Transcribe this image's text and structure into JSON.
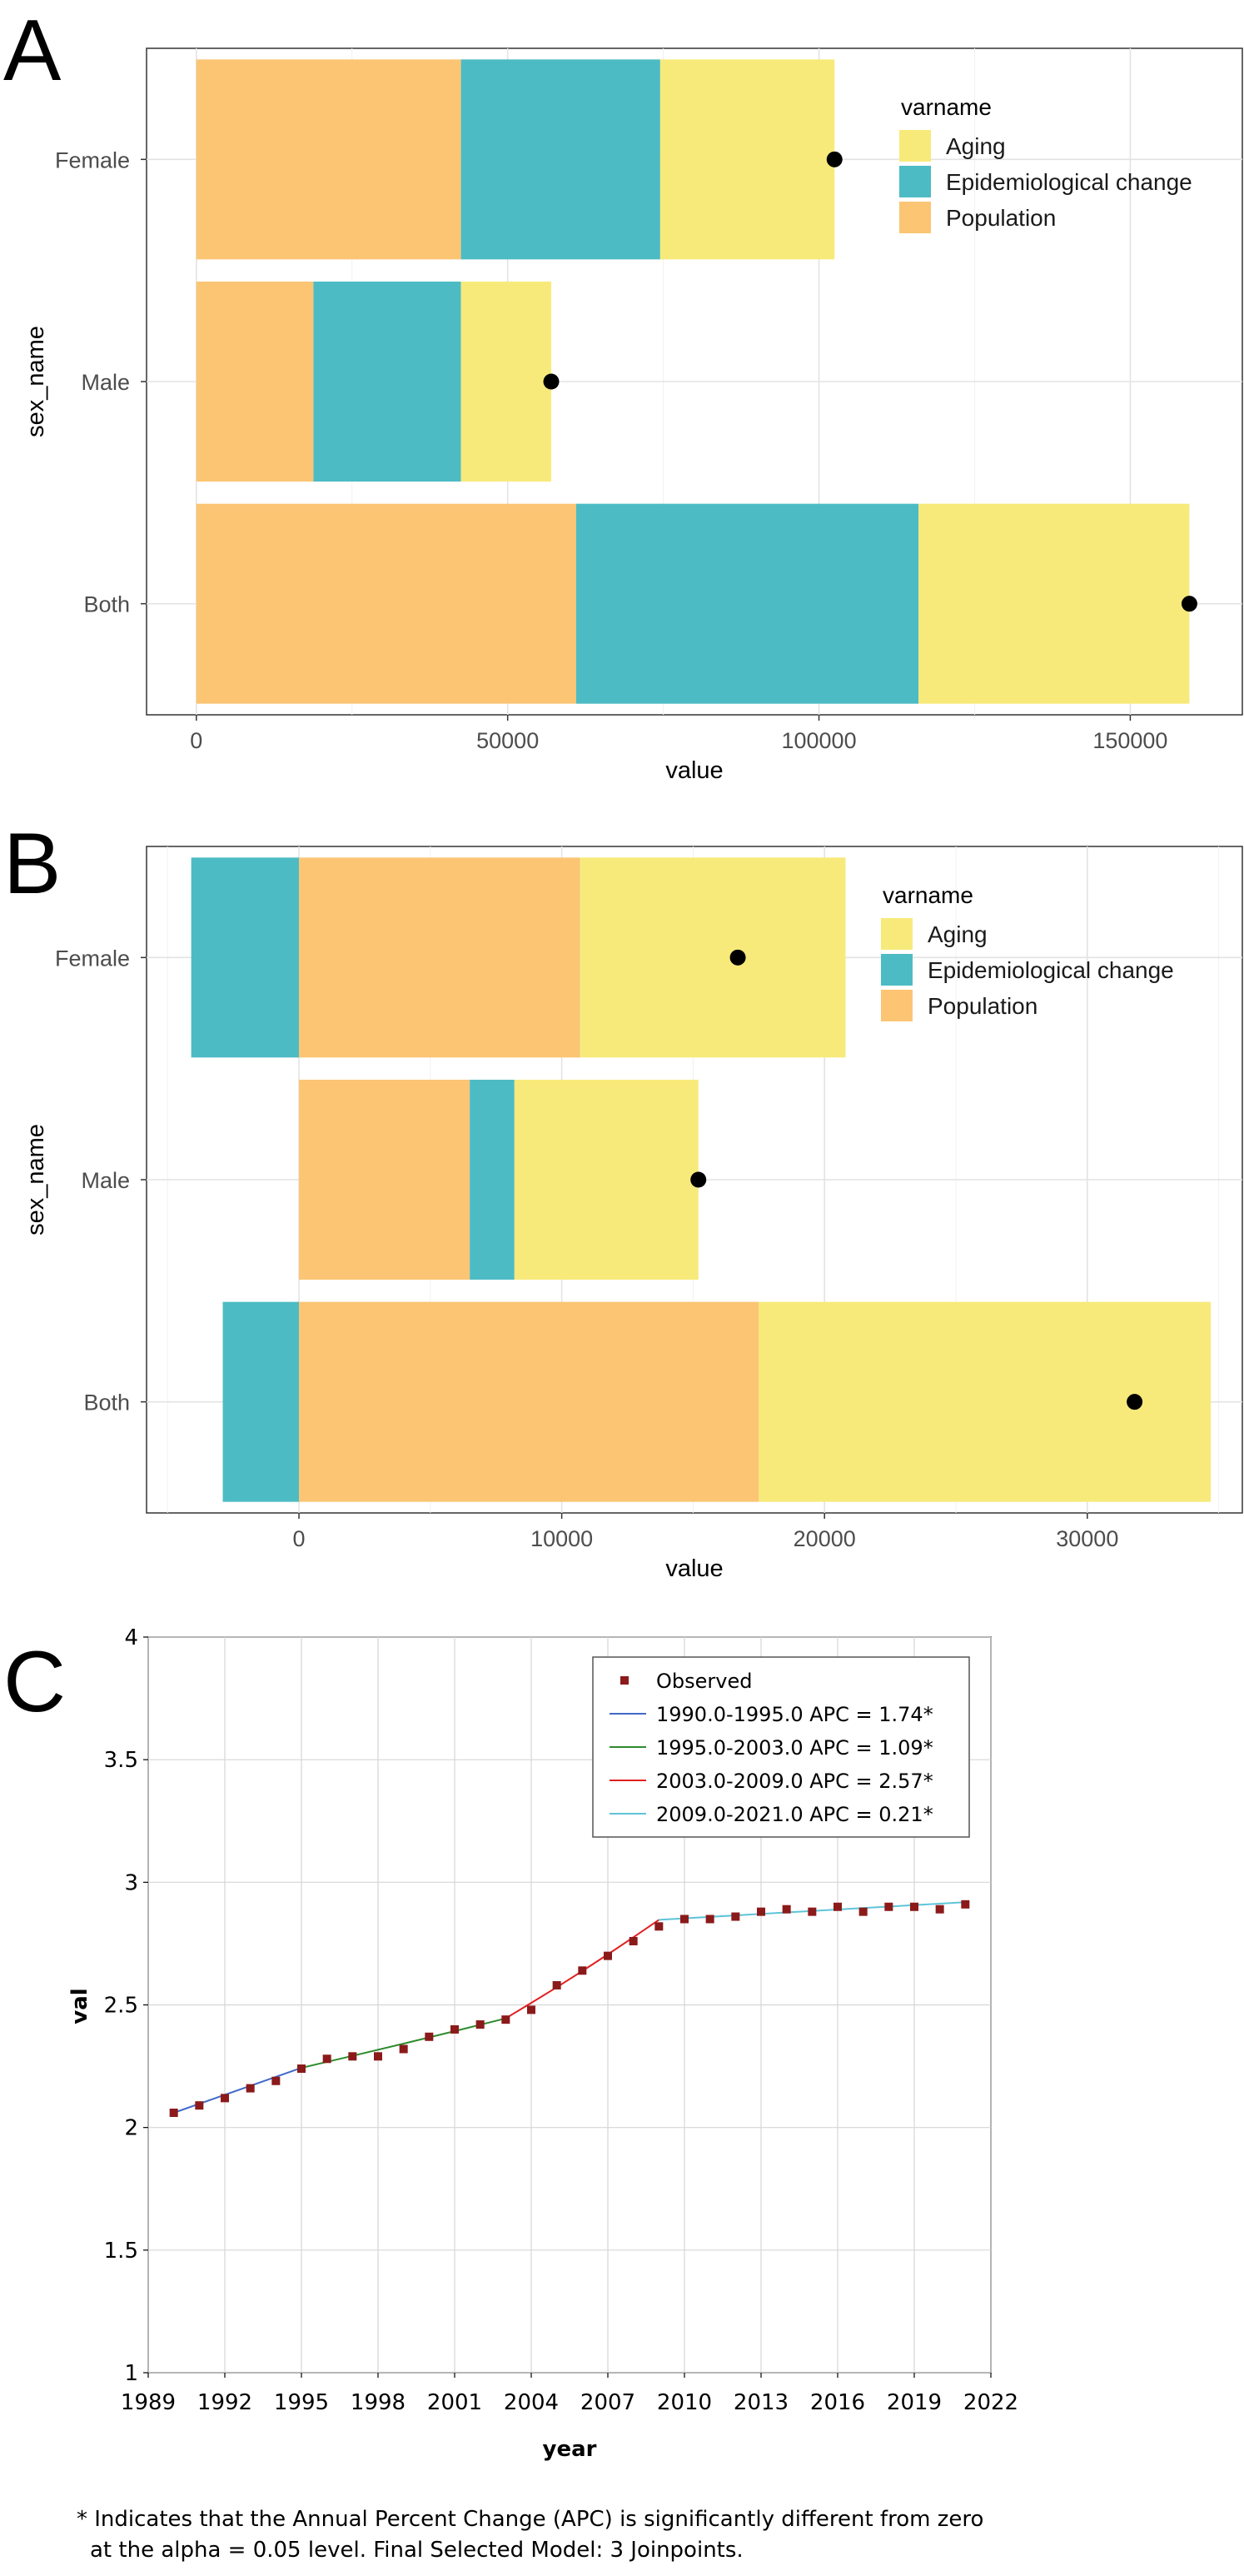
{
  "panels": {
    "a": "A",
    "b": "B",
    "c": "C"
  },
  "colors": {
    "Aging": "#F7EA7A",
    "Epidemiological change": "#4DBBC4",
    "Population": "#FBC574",
    "point": "#000000",
    "observed": "#8B1A1A",
    "seg1": "#4169C8",
    "seg2": "#2E8B2E",
    "seg3": "#E02020",
    "seg4": "#5FC4D8"
  },
  "chart_data": [
    {
      "id": "A",
      "type": "bar",
      "orientation": "horizontal",
      "stacked": true,
      "title": "",
      "xlabel": "value",
      "ylabel": "sex_name",
      "xlim": [
        -8000,
        168000
      ],
      "xticks": [
        0,
        50000,
        100000,
        150000
      ],
      "categories": [
        "Female",
        "Male",
        "Both"
      ],
      "legend_title": "varname",
      "legend_items": [
        "Aging",
        "Epidemiological change",
        "Population"
      ],
      "legend_position": "top-right",
      "segments": [
        [
          {
            "series": "Population",
            "from": 0,
            "to": 42500
          },
          {
            "series": "Epidemiological change",
            "from": 42500,
            "to": 74500
          },
          {
            "series": "Aging",
            "from": 74500,
            "to": 102500
          }
        ],
        [
          {
            "series": "Population",
            "from": 0,
            "to": 18800
          },
          {
            "series": "Epidemiological change",
            "from": 18800,
            "to": 42500
          },
          {
            "series": "Aging",
            "from": 42500,
            "to": 57000
          }
        ],
        [
          {
            "series": "Population",
            "from": 0,
            "to": 61000
          },
          {
            "series": "Epidemiological change",
            "from": 61000,
            "to": 116000
          },
          {
            "series": "Aging",
            "from": 116000,
            "to": 159500
          }
        ]
      ],
      "totals": [
        102500,
        57000,
        159500
      ],
      "grid": true
    },
    {
      "id": "B",
      "type": "bar",
      "orientation": "horizontal",
      "stacked": true,
      "title": "",
      "xlabel": "value",
      "ylabel": "sex_name",
      "xlim": [
        -5800,
        35900
      ],
      "xticks": [
        0,
        10000,
        20000,
        30000
      ],
      "categories": [
        "Female",
        "Male",
        "Both"
      ],
      "legend_title": "varname",
      "legend_items": [
        "Aging",
        "Epidemiological change",
        "Population"
      ],
      "legend_position": "top-right",
      "segments": [
        [
          {
            "series": "Epidemiological change",
            "from": -4100,
            "to": 0
          },
          {
            "series": "Population",
            "from": 0,
            "to": 10700
          },
          {
            "series": "Aging",
            "from": 10700,
            "to": 20800
          }
        ],
        [
          {
            "series": "Population",
            "from": 0,
            "to": 6500
          },
          {
            "series": "Epidemiological change",
            "from": 6500,
            "to": 8200
          },
          {
            "series": "Aging",
            "from": 8200,
            "to": 15200
          }
        ],
        [
          {
            "series": "Epidemiological change",
            "from": -2900,
            "to": 0
          },
          {
            "series": "Population",
            "from": 0,
            "to": 17500
          },
          {
            "series": "Aging",
            "from": 17500,
            "to": 34700
          }
        ]
      ],
      "totals": [
        16700,
        15200,
        31800
      ],
      "grid": true
    },
    {
      "id": "C",
      "type": "line",
      "title": "",
      "xlabel": "year",
      "ylabel": "val",
      "xlim": [
        1989,
        2022
      ],
      "ylim": [
        1,
        4
      ],
      "xticks": [
        1989,
        1992,
        1995,
        1998,
        2001,
        2004,
        2007,
        2010,
        2013,
        2016,
        2019,
        2022
      ],
      "yticks": [
        1,
        1.5,
        2,
        2.5,
        3,
        3.5,
        4
      ],
      "legend_position": "top-right",
      "observed": {
        "name": "Observed",
        "x": [
          1990,
          1991,
          1992,
          1993,
          1994,
          1995,
          1996,
          1997,
          1998,
          1999,
          2000,
          2001,
          2002,
          2003,
          2004,
          2005,
          2006,
          2007,
          2008,
          2009,
          2010,
          2011,
          2012,
          2013,
          2014,
          2015,
          2016,
          2017,
          2018,
          2019,
          2020,
          2021
        ],
        "y": [
          2.06,
          2.09,
          2.12,
          2.16,
          2.19,
          2.24,
          2.28,
          2.29,
          2.29,
          2.32,
          2.37,
          2.4,
          2.42,
          2.44,
          2.48,
          2.58,
          2.64,
          2.7,
          2.76,
          2.82,
          2.85,
          2.85,
          2.86,
          2.88,
          2.89,
          2.88,
          2.9,
          2.88,
          2.9,
          2.9,
          2.89,
          2.91
        ]
      },
      "series": [
        {
          "name": "1990.0-1995.0 APC  = 1.74*",
          "color_key": "seg1",
          "x": [
            1990,
            1995
          ],
          "y": [
            2.06,
            2.243
          ]
        },
        {
          "name": "1995.0-2003.0 APC  = 1.09*",
          "color_key": "seg2",
          "x": [
            1995,
            1997,
            1999,
            2001,
            2003
          ],
          "y": [
            2.243,
            2.292,
            2.342,
            2.393,
            2.445
          ]
        },
        {
          "name": "2003.0-2009.0 APC  = 2.57*",
          "color_key": "seg3",
          "x": [
            2003,
            2004,
            2005,
            2006,
            2007,
            2008,
            2009
          ],
          "y": [
            2.445,
            2.508,
            2.572,
            2.638,
            2.706,
            2.776,
            2.847
          ]
        },
        {
          "name": "2009.0-2021.0 APC  = 0.21*",
          "color_key": "seg4",
          "x": [
            2009,
            2013,
            2017,
            2021
          ],
          "y": [
            2.847,
            2.871,
            2.895,
            2.919
          ]
        }
      ],
      "grid": true
    }
  ],
  "footnote": {
    "line1": "* Indicates that the Annual Percent Change (APC) is significantly different from zero",
    "line2": "at the alpha = 0.05 level. Final Selected Model: 3 Joinpoints."
  }
}
